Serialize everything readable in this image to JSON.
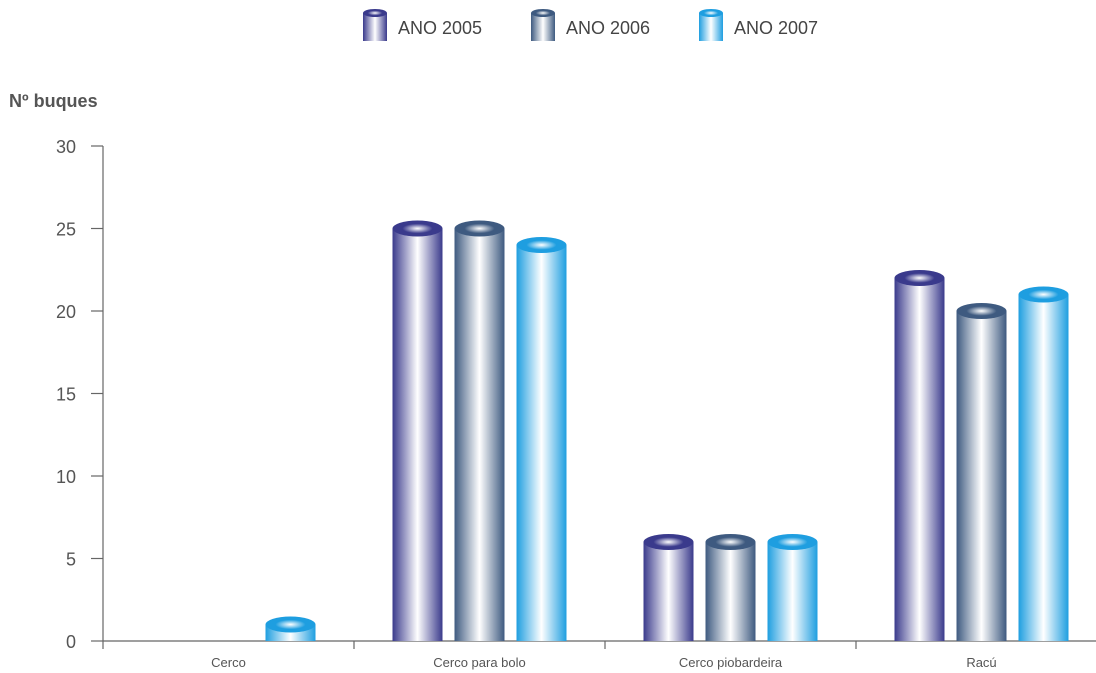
{
  "chart_data": {
    "type": "bar",
    "title": "",
    "xlabel": "",
    "ylabel": "Nº buques",
    "categories": [
      "Cerco",
      "Cerco para bolo",
      "Cerco piobardeira",
      "Racú"
    ],
    "series": [
      {
        "name": "ANO 2005",
        "values": [
          0,
          25,
          6,
          22
        ],
        "color": "#3a3a8c"
      },
      {
        "name": "ANO 2006",
        "values": [
          0,
          25,
          6,
          20
        ],
        "color": "#3e5a80"
      },
      {
        "name": "ANO 2007",
        "values": [
          1,
          24,
          6,
          21
        ],
        "color": "#1e9ee0"
      }
    ],
    "ylim": [
      0,
      30
    ],
    "yticks": [
      0,
      5,
      10,
      15,
      20,
      25,
      30
    ],
    "grid": false,
    "legend_position": "top-center"
  }
}
